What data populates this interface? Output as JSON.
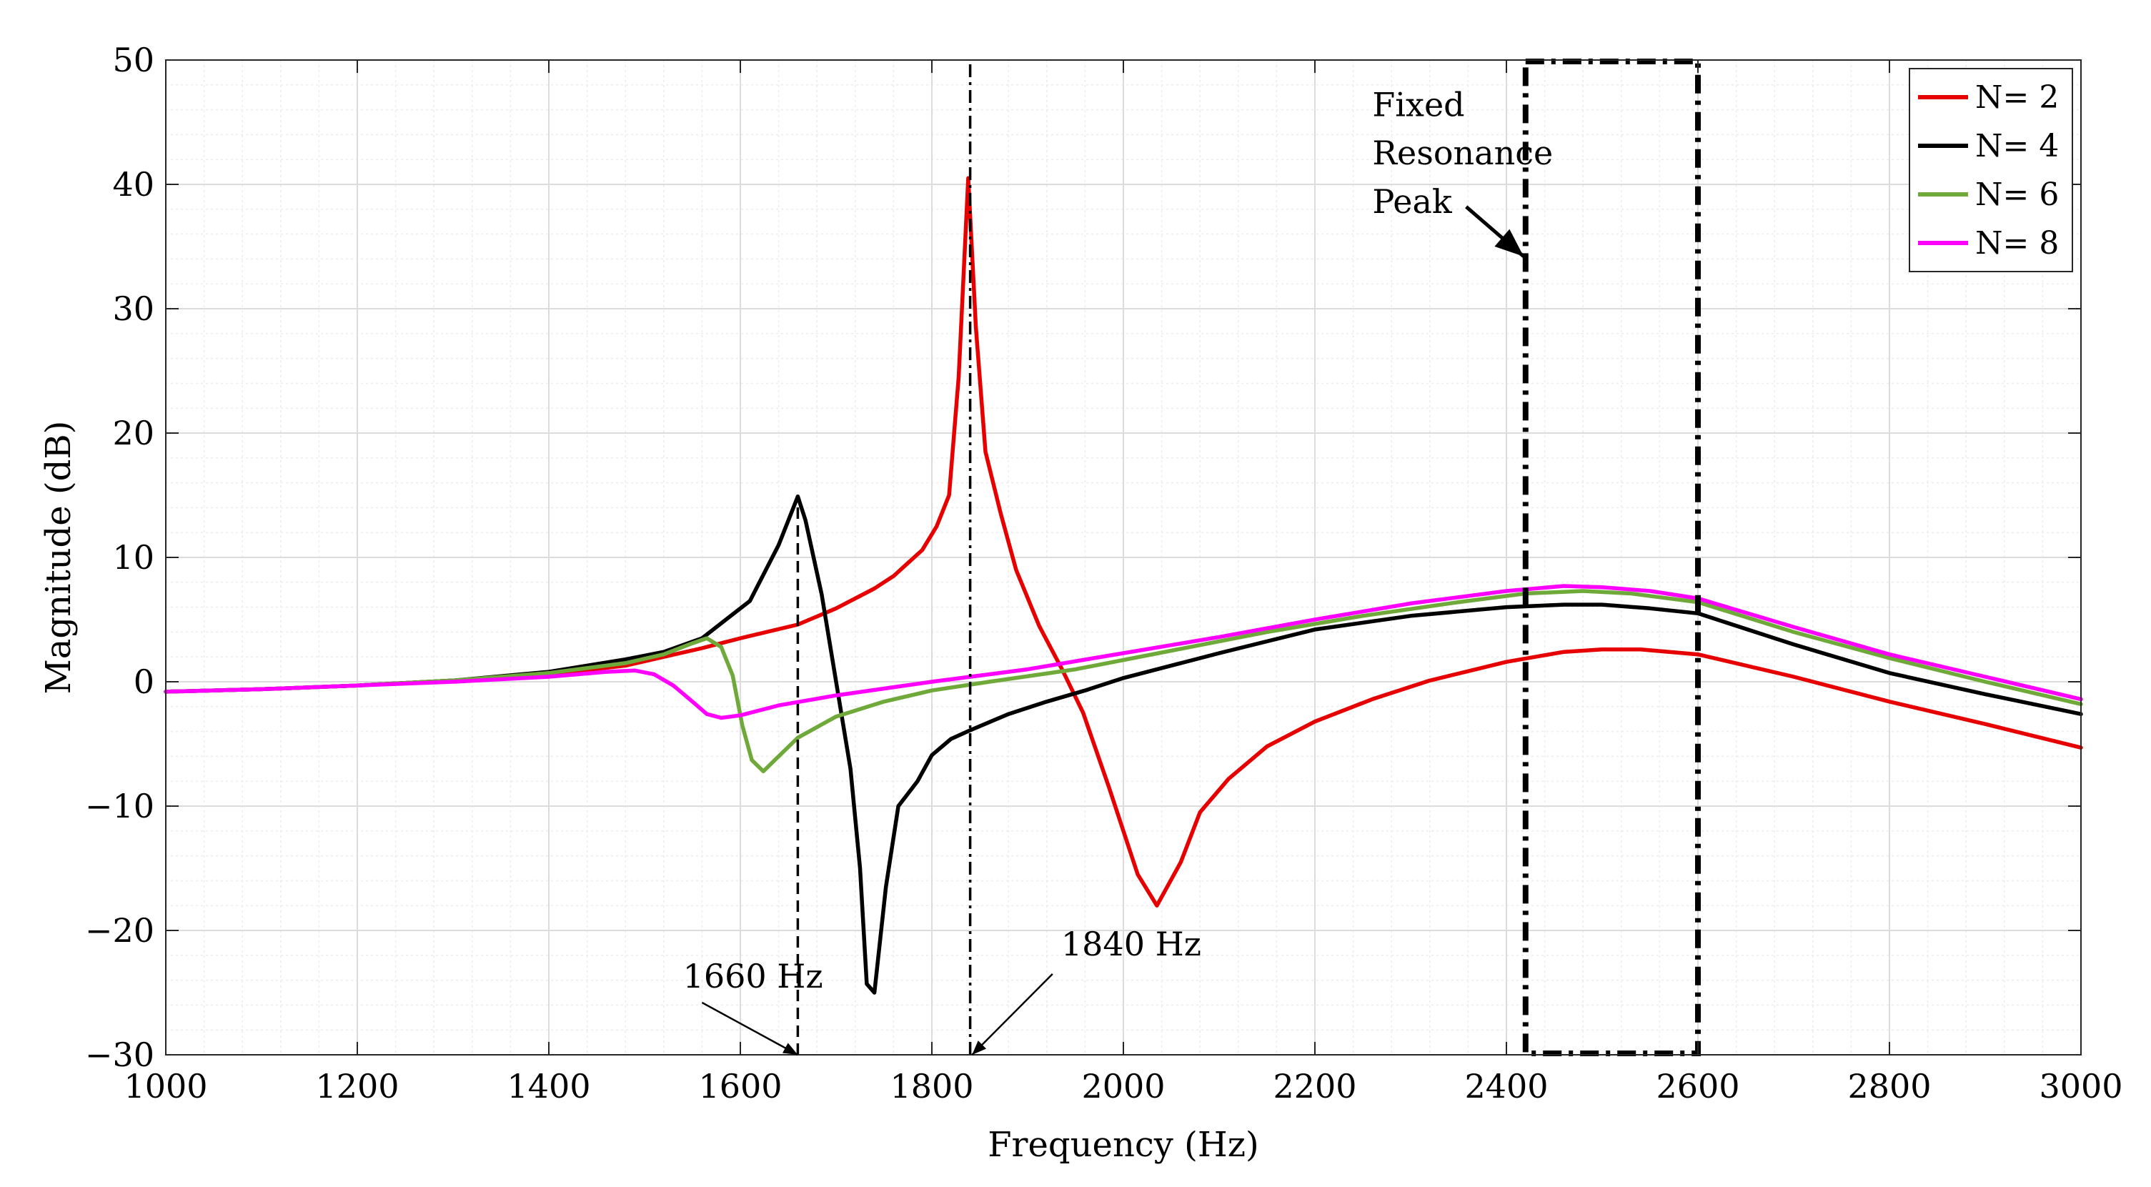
{
  "chart_data": {
    "type": "line",
    "title": "",
    "xlabel": "Frequency (Hz)",
    "ylabel": "Magnitude (dB)",
    "xlim": [
      1000,
      3000
    ],
    "ylim": [
      -30,
      50
    ],
    "grid": true,
    "minor_grid": true,
    "legend_position": "top-right",
    "x_ticks": [
      1000,
      1200,
      1400,
      1600,
      1800,
      2000,
      2200,
      2400,
      2600,
      2800,
      3000
    ],
    "y_ticks": [
      50,
      40,
      30,
      20,
      10,
      0,
      -10,
      -20,
      -30
    ],
    "y_tick_labels": [
      "50",
      "40",
      "30",
      "20",
      "10",
      "0",
      "−10",
      "−20",
      "−30"
    ],
    "series": [
      {
        "name": "N= 2",
        "color": "#e60000",
        "points": [
          [
            1000,
            -0.8
          ],
          [
            1100,
            -0.6
          ],
          [
            1200,
            -0.3
          ],
          [
            1300,
            0.1
          ],
          [
            1400,
            0.6
          ],
          [
            1480,
            1.3
          ],
          [
            1520,
            2.0
          ],
          [
            1560,
            2.7
          ],
          [
            1600,
            3.5
          ],
          [
            1660,
            4.6
          ],
          [
            1700,
            5.9
          ],
          [
            1740,
            7.5
          ],
          [
            1760,
            8.5
          ],
          [
            1790,
            10.6
          ],
          [
            1805,
            12.5
          ],
          [
            1818,
            15.0
          ],
          [
            1828,
            24.5
          ],
          [
            1838,
            40.5
          ],
          [
            1846,
            28.5
          ],
          [
            1856,
            18.5
          ],
          [
            1872,
            13.5
          ],
          [
            1888,
            9.0
          ],
          [
            1912,
            4.5
          ],
          [
            1936,
            1.0
          ],
          [
            1958,
            -2.5
          ],
          [
            1985,
            -8.5
          ],
          [
            2015,
            -15.5
          ],
          [
            2035,
            -18.0
          ],
          [
            2060,
            -14.5
          ],
          [
            2080,
            -10.5
          ],
          [
            2110,
            -7.8
          ],
          [
            2150,
            -5.2
          ],
          [
            2200,
            -3.2
          ],
          [
            2260,
            -1.4
          ],
          [
            2320,
            0.1
          ],
          [
            2400,
            1.6
          ],
          [
            2460,
            2.4
          ],
          [
            2500,
            2.6
          ],
          [
            2540,
            2.6
          ],
          [
            2600,
            2.2
          ],
          [
            2700,
            0.4
          ],
          [
            2800,
            -1.6
          ],
          [
            2900,
            -3.4
          ],
          [
            3000,
            -5.3
          ]
        ]
      },
      {
        "name": "N= 4",
        "color": "#000000",
        "points": [
          [
            1000,
            -0.8
          ],
          [
            1100,
            -0.6
          ],
          [
            1200,
            -0.3
          ],
          [
            1300,
            0.1
          ],
          [
            1400,
            0.8
          ],
          [
            1480,
            1.8
          ],
          [
            1520,
            2.4
          ],
          [
            1560,
            3.5
          ],
          [
            1610,
            6.5
          ],
          [
            1640,
            11.0
          ],
          [
            1660,
            14.9
          ],
          [
            1668,
            13.0
          ],
          [
            1685,
            7.0
          ],
          [
            1700,
            0.0
          ],
          [
            1715,
            -7.0
          ],
          [
            1725,
            -15.0
          ],
          [
            1732,
            -24.3
          ],
          [
            1740,
            -25.0
          ],
          [
            1752,
            -16.5
          ],
          [
            1765,
            -10.0
          ],
          [
            1785,
            -8.0
          ],
          [
            1800,
            -5.9
          ],
          [
            1820,
            -4.6
          ],
          [
            1840,
            -3.9
          ],
          [
            1880,
            -2.6
          ],
          [
            1920,
            -1.6
          ],
          [
            1960,
            -0.7
          ],
          [
            2000,
            0.3
          ],
          [
            2100,
            2.3
          ],
          [
            2200,
            4.2
          ],
          [
            2300,
            5.3
          ],
          [
            2400,
            6.0
          ],
          [
            2460,
            6.2
          ],
          [
            2500,
            6.2
          ],
          [
            2550,
            5.9
          ],
          [
            2600,
            5.5
          ],
          [
            2700,
            3.0
          ],
          [
            2800,
            0.7
          ],
          [
            2900,
            -1.0
          ],
          [
            3000,
            -2.6
          ]
        ]
      },
      {
        "name": "N= 6",
        "color": "#6fa93a",
        "points": [
          [
            1000,
            -0.8
          ],
          [
            1100,
            -0.6
          ],
          [
            1200,
            -0.3
          ],
          [
            1300,
            0.1
          ],
          [
            1400,
            0.7
          ],
          [
            1480,
            1.5
          ],
          [
            1520,
            2.2
          ],
          [
            1550,
            3.1
          ],
          [
            1565,
            3.5
          ],
          [
            1580,
            2.8
          ],
          [
            1592,
            0.5
          ],
          [
            1602,
            -3.5
          ],
          [
            1612,
            -6.3
          ],
          [
            1624,
            -7.2
          ],
          [
            1636,
            -6.3
          ],
          [
            1660,
            -4.5
          ],
          [
            1700,
            -2.8
          ],
          [
            1750,
            -1.6
          ],
          [
            1800,
            -0.7
          ],
          [
            1860,
            0.0
          ],
          [
            1950,
            1.0
          ],
          [
            2050,
            2.5
          ],
          [
            2150,
            4.0
          ],
          [
            2250,
            5.3
          ],
          [
            2350,
            6.4
          ],
          [
            2420,
            7.1
          ],
          [
            2480,
            7.3
          ],
          [
            2530,
            7.1
          ],
          [
            2600,
            6.4
          ],
          [
            2700,
            4.0
          ],
          [
            2800,
            1.9
          ],
          [
            2900,
            0.0
          ],
          [
            3000,
            -1.8
          ]
        ]
      },
      {
        "name": "N= 8",
        "color": "#ff00ff",
        "points": [
          [
            1000,
            -0.8
          ],
          [
            1100,
            -0.6
          ],
          [
            1200,
            -0.3
          ],
          [
            1300,
            0.0
          ],
          [
            1400,
            0.4
          ],
          [
            1460,
            0.8
          ],
          [
            1490,
            0.9
          ],
          [
            1510,
            0.6
          ],
          [
            1530,
            -0.3
          ],
          [
            1550,
            -1.6
          ],
          [
            1565,
            -2.6
          ],
          [
            1580,
            -2.9
          ],
          [
            1600,
            -2.7
          ],
          [
            1640,
            -1.9
          ],
          [
            1700,
            -1.1
          ],
          [
            1800,
            0.0
          ],
          [
            1900,
            1.0
          ],
          [
            2000,
            2.3
          ],
          [
            2100,
            3.6
          ],
          [
            2200,
            5.0
          ],
          [
            2300,
            6.3
          ],
          [
            2400,
            7.3
          ],
          [
            2460,
            7.7
          ],
          [
            2500,
            7.6
          ],
          [
            2550,
            7.3
          ],
          [
            2600,
            6.7
          ],
          [
            2700,
            4.4
          ],
          [
            2800,
            2.2
          ],
          [
            2900,
            0.4
          ],
          [
            3000,
            -1.4
          ]
        ]
      }
    ],
    "vlines": [
      {
        "x": 1660,
        "y_from": -30,
        "y_to": 14.9,
        "style": "dashed"
      },
      {
        "x": 1840,
        "y_from": -30,
        "y_to": 50,
        "style": "dashdot"
      }
    ],
    "highlight_box": {
      "x_from": 2420,
      "x_to": 2600,
      "y_from": -30,
      "y_to": 50
    },
    "annotations": [
      {
        "text": "1660 Hz",
        "text_x": 1540,
        "text_y": -24.6,
        "arrow_from_x": 1560,
        "arrow_from_y": -25.8,
        "arrow_to_x": 1660,
        "arrow_to_y": -30
      },
      {
        "text": "1840 Hz",
        "text_x": 1935,
        "text_y": -22.0,
        "arrow_from_x": 1926,
        "arrow_from_y": -23.5,
        "arrow_to_x": 1842,
        "arrow_to_y": -30
      },
      {
        "lines": [
          "Fixed",
          "Resonance",
          "Peak"
        ],
        "text_x": 2260,
        "text_y": 45.5,
        "line_step": 3.9,
        "arrow_from_x": 2358,
        "arrow_from_y": 38.2,
        "arrow_to_x": 2418,
        "arrow_to_y": 34.2
      }
    ]
  }
}
